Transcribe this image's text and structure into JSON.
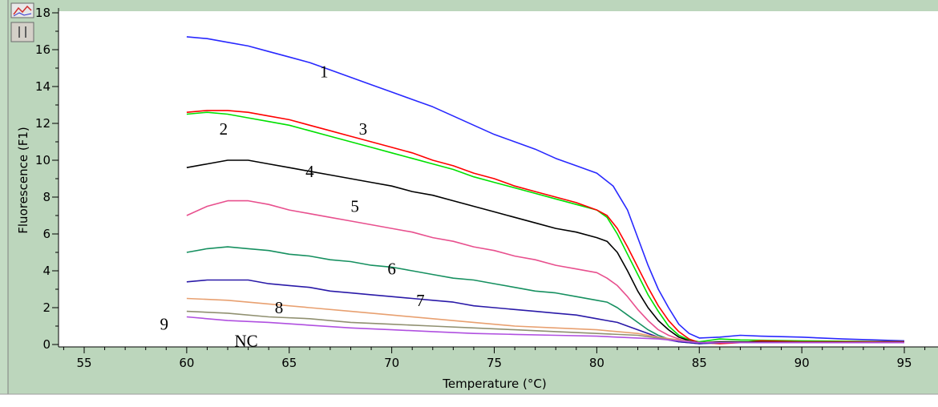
{
  "chart_data": {
    "type": "line",
    "xlabel": "Temperature (°C)",
    "ylabel": "Fluorescence (F1)",
    "xlim": [
      55,
      98
    ],
    "ylim": [
      0,
      18
    ],
    "xticks": [
      55,
      60,
      65,
      70,
      75,
      80,
      85,
      90,
      95
    ],
    "yticks": [
      0,
      2,
      4,
      6,
      8,
      10,
      12,
      14,
      16,
      18
    ],
    "grid": false,
    "series": [
      {
        "name": "1",
        "color": "#2828ff",
        "x": [
          60,
          61,
          62,
          63,
          64,
          65,
          66,
          67,
          68,
          69,
          70,
          71,
          72,
          73,
          74,
          75,
          76,
          77,
          78,
          79,
          80,
          80.8,
          81.5,
          82,
          82.5,
          83,
          83.5,
          84,
          84.5,
          85,
          86,
          87,
          88,
          90,
          92,
          95
        ],
        "y": [
          16.7,
          16.6,
          16.4,
          16.2,
          15.9,
          15.6,
          15.3,
          14.9,
          14.5,
          14.1,
          13.7,
          13.3,
          12.9,
          12.4,
          11.9,
          11.4,
          11.0,
          10.6,
          10.1,
          9.7,
          9.3,
          8.6,
          7.3,
          5.8,
          4.3,
          3.0,
          2.0,
          1.1,
          0.6,
          0.35,
          0.4,
          0.5,
          0.45,
          0.4,
          0.3,
          0.2
        ]
      },
      {
        "name": "2",
        "color": "#00e000",
        "x": [
          60,
          61,
          62,
          63,
          64,
          65,
          66,
          67,
          68,
          69,
          70,
          71,
          72,
          73,
          74,
          75,
          76,
          77,
          78,
          79,
          80,
          80.5,
          81,
          81.5,
          82,
          82.5,
          83,
          83.5,
          84,
          84.5,
          85,
          86,
          87,
          90,
          95
        ],
        "y": [
          12.5,
          12.6,
          12.5,
          12.3,
          12.1,
          11.9,
          11.6,
          11.3,
          11.0,
          10.7,
          10.4,
          10.1,
          9.8,
          9.5,
          9.1,
          8.8,
          8.5,
          8.2,
          7.9,
          7.6,
          7.3,
          6.9,
          6.0,
          4.9,
          3.8,
          2.7,
          1.8,
          1.0,
          0.5,
          0.25,
          0.15,
          0.3,
          0.25,
          0.2,
          0.15
        ]
      },
      {
        "name": "3",
        "color": "#ff0000",
        "x": [
          60,
          61,
          62,
          63,
          64,
          65,
          66,
          67,
          68,
          69,
          70,
          71,
          72,
          73,
          74,
          75,
          76,
          77,
          78,
          79,
          80,
          80.5,
          81,
          81.5,
          82,
          82.5,
          83,
          83.5,
          84,
          84.5,
          85,
          86,
          87,
          88,
          90,
          95
        ],
        "y": [
          12.6,
          12.7,
          12.7,
          12.6,
          12.4,
          12.2,
          11.9,
          11.6,
          11.3,
          11.0,
          10.7,
          10.4,
          10.0,
          9.7,
          9.3,
          9.0,
          8.6,
          8.3,
          8.0,
          7.7,
          7.3,
          7.0,
          6.3,
          5.3,
          4.2,
          3.1,
          2.1,
          1.3,
          0.7,
          0.3,
          0.1,
          0.05,
          0.1,
          0.2,
          0.15,
          0.15
        ]
      },
      {
        "name": "4",
        "color": "#000000",
        "x": [
          60,
          61,
          62,
          63,
          64,
          65,
          66,
          67,
          68,
          69,
          70,
          71,
          72,
          73,
          74,
          75,
          76,
          77,
          78,
          79,
          80,
          80.5,
          81,
          81.5,
          82,
          82.5,
          83,
          83.5,
          84,
          84.5,
          85,
          86,
          90,
          95
        ],
        "y": [
          9.6,
          9.8,
          10.0,
          10.0,
          9.8,
          9.6,
          9.4,
          9.2,
          9.0,
          8.8,
          8.6,
          8.3,
          8.1,
          7.8,
          7.5,
          7.2,
          6.9,
          6.6,
          6.3,
          6.1,
          5.8,
          5.6,
          5.0,
          4.0,
          2.9,
          2.0,
          1.3,
          0.8,
          0.4,
          0.2,
          0.1,
          0.15,
          0.12,
          0.12
        ]
      },
      {
        "name": "5",
        "color": "#e8508e",
        "x": [
          60,
          61,
          62,
          63,
          64,
          65,
          66,
          67,
          68,
          69,
          70,
          71,
          72,
          73,
          74,
          75,
          76,
          77,
          78,
          79,
          80,
          80.5,
          81,
          81.5,
          82,
          82.5,
          83,
          83.5,
          84,
          84.5,
          85,
          86,
          90,
          95
        ],
        "y": [
          7.0,
          7.5,
          7.8,
          7.8,
          7.6,
          7.3,
          7.1,
          6.9,
          6.7,
          6.5,
          6.3,
          6.1,
          5.8,
          5.6,
          5.3,
          5.1,
          4.8,
          4.6,
          4.3,
          4.1,
          3.9,
          3.6,
          3.2,
          2.6,
          1.9,
          1.3,
          0.8,
          0.5,
          0.3,
          0.15,
          0.1,
          0.1,
          0.1,
          0.1
        ]
      },
      {
        "name": "6",
        "color": "#169060",
        "x": [
          60,
          61,
          62,
          63,
          64,
          65,
          66,
          67,
          68,
          69,
          70,
          71,
          72,
          73,
          74,
          75,
          76,
          77,
          78,
          79,
          80,
          80.5,
          81,
          81.5,
          82,
          82.5,
          83,
          83.5,
          84,
          84.5,
          85,
          86,
          90,
          95
        ],
        "y": [
          5.0,
          5.2,
          5.3,
          5.2,
          5.1,
          4.9,
          4.8,
          4.6,
          4.5,
          4.3,
          4.2,
          4.0,
          3.8,
          3.6,
          3.5,
          3.3,
          3.1,
          2.9,
          2.8,
          2.6,
          2.4,
          2.3,
          2.0,
          1.6,
          1.2,
          0.8,
          0.5,
          0.3,
          0.15,
          0.1,
          0.05,
          0.1,
          0.1,
          0.1
        ]
      },
      {
        "name": "7",
        "color": "#2a1aa8",
        "x": [
          60,
          61,
          62,
          63,
          64,
          65,
          66,
          67,
          68,
          69,
          70,
          71,
          72,
          73,
          74,
          75,
          76,
          77,
          78,
          79,
          80,
          80.5,
          81,
          81.5,
          82,
          82.5,
          83,
          83.5,
          84,
          84.5,
          85,
          86,
          90,
          95
        ],
        "y": [
          3.4,
          3.5,
          3.5,
          3.5,
          3.3,
          3.2,
          3.1,
          2.9,
          2.8,
          2.7,
          2.6,
          2.5,
          2.4,
          2.3,
          2.1,
          2.0,
          1.9,
          1.8,
          1.7,
          1.6,
          1.4,
          1.3,
          1.2,
          1.0,
          0.8,
          0.6,
          0.4,
          0.25,
          0.15,
          0.1,
          0.05,
          0.1,
          0.1,
          0.1
        ]
      },
      {
        "name": "8",
        "color": "#e8a070",
        "x": [
          60,
          62,
          64,
          66,
          68,
          70,
          72,
          74,
          76,
          78,
          80,
          82,
          83,
          84,
          85,
          86,
          90,
          95
        ],
        "y": [
          2.5,
          2.4,
          2.2,
          2.0,
          1.8,
          1.6,
          1.4,
          1.2,
          1.0,
          0.9,
          0.8,
          0.6,
          0.4,
          0.25,
          0.1,
          0.1,
          0.1,
          0.1
        ]
      },
      {
        "name": "9",
        "color": "#909070",
        "x": [
          60,
          62,
          64,
          66,
          68,
          70,
          72,
          74,
          76,
          78,
          80,
          82,
          83,
          84,
          85,
          86,
          90,
          95
        ],
        "y": [
          1.8,
          1.7,
          1.5,
          1.4,
          1.2,
          1.1,
          1.0,
          0.9,
          0.8,
          0.7,
          0.6,
          0.5,
          0.35,
          0.2,
          0.1,
          0.1,
          0.1,
          0.1
        ]
      },
      {
        "name": "NC",
        "color": "#b050e0",
        "x": [
          60,
          62,
          64,
          66,
          68,
          70,
          72,
          74,
          76,
          78,
          80,
          82,
          83,
          84,
          85,
          86,
          90,
          95
        ],
        "y": [
          1.5,
          1.3,
          1.2,
          1.05,
          0.9,
          0.8,
          0.7,
          0.6,
          0.55,
          0.5,
          0.45,
          0.35,
          0.3,
          0.2,
          0.1,
          0.1,
          0.1,
          0.1
        ]
      }
    ],
    "annotations": [
      {
        "text": "1",
        "x": 66.7,
        "y": 14.8
      },
      {
        "text": "2",
        "x": 61.8,
        "y": 11.7
      },
      {
        "text": "3",
        "x": 68.6,
        "y": 11.7
      },
      {
        "text": "4",
        "x": 66.0,
        "y": 9.4
      },
      {
        "text": "5",
        "x": 68.2,
        "y": 7.5
      },
      {
        "text": "6",
        "x": 70.0,
        "y": 4.1
      },
      {
        "text": "7",
        "x": 71.4,
        "y": 2.4
      },
      {
        "text": "8",
        "x": 64.5,
        "y": 2.0
      },
      {
        "text": "9",
        "x": 58.9,
        "y": 1.1
      },
      {
        "text": "NC",
        "x": 62.9,
        "y": 0.2
      }
    ]
  }
}
